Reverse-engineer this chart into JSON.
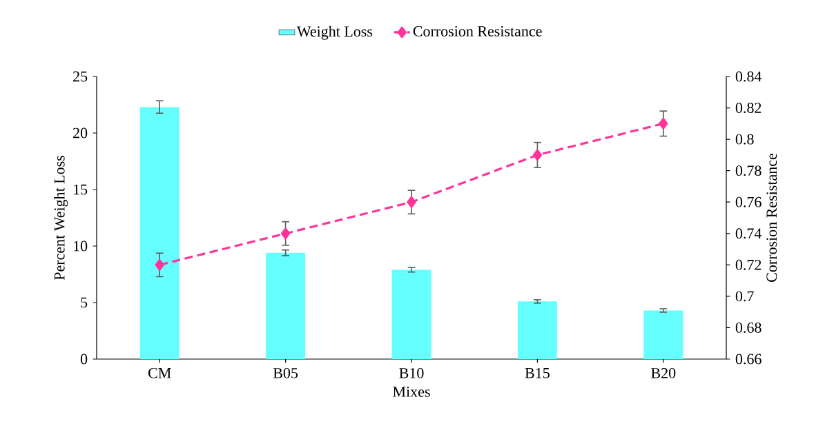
{
  "chart_data": {
    "type": "bar",
    "categories": [
      "CM",
      "B05",
      "B10",
      "B15",
      "B20"
    ],
    "series": [
      {
        "name": "Weight Loss",
        "color": "#66ffff",
        "values": [
          22.3,
          9.4,
          7.9,
          5.1,
          4.3
        ],
        "errors": [
          0.55,
          0.25,
          0.2,
          0.15,
          0.15
        ]
      },
      {
        "name": "Corrosion Resistance",
        "type": "line",
        "axis": "y2",
        "color": "#ff3399",
        "values": [
          0.72,
          0.74,
          0.76,
          0.79,
          0.81
        ],
        "errors": [
          0.0075,
          0.0075,
          0.0075,
          0.008,
          0.008
        ],
        "marker": "diamond",
        "line_style": "dashed"
      }
    ],
    "xlabel": "Mixes",
    "ylabel": "Percent Weight Loss",
    "y2label": "Corrosion  Resistance",
    "ylim": [
      0,
      25
    ],
    "yticks": [
      0,
      5,
      10,
      15,
      20,
      25
    ],
    "y2lim": [
      0.66,
      0.84
    ],
    "y2ticks": [
      0.66,
      0.68,
      0.7,
      0.72,
      0.74,
      0.76,
      0.78,
      0.8,
      0.82,
      0.84
    ],
    "legend": "top"
  }
}
